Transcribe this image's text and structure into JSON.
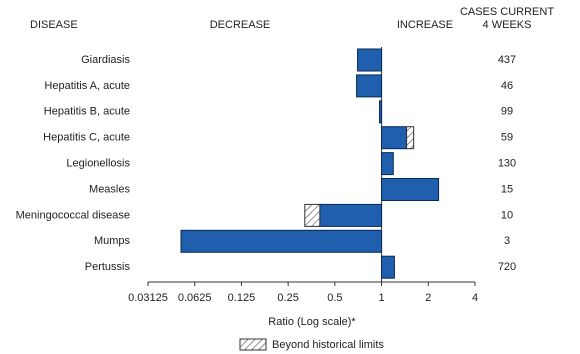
{
  "chart_data": {
    "type": "bar",
    "headers": {
      "disease": "DISEASE",
      "decrease": "DECREASE",
      "increase": "INCREASE",
      "cases": [
        "CASES CURRENT",
        "4 WEEKS"
      ]
    },
    "categories": [
      "Giardiasis",
      "Hepatitis A, acute",
      "Hepatitis B, acute",
      "Hepatitis C, acute",
      "Legionellosis",
      "Measles",
      "Meningococcal disease",
      "Mumps",
      "Pertussis"
    ],
    "values": [
      0.7,
      0.69,
      0.97,
      1.61,
      1.19,
      2.33,
      0.32,
      0.051,
      1.21
    ],
    "historical_limits": [
      null,
      null,
      null,
      1.45,
      null,
      null,
      0.4,
      null,
      null
    ],
    "cases": [
      437,
      46,
      99,
      59,
      130,
      15,
      10,
      3,
      720
    ],
    "color": "#1f5fae",
    "log_scale": true,
    "xlim": [
      0.03125,
      4
    ],
    "xticks": [
      0.03125,
      0.0625,
      0.125,
      0.25,
      0.5,
      1,
      2,
      4
    ],
    "xlabel": "Ratio (Log scale)*",
    "legend": "Beyond historical limits"
  }
}
